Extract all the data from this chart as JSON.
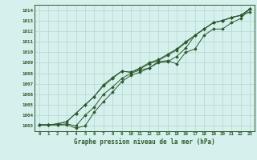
{
  "title": "Graphe pression niveau de la mer (hPa)",
  "background_color": "#d6f0ed",
  "grid_color": "#b0d8d0",
  "line_color": "#2d5a2d",
  "x_ticks": [
    0,
    1,
    2,
    3,
    4,
    5,
    6,
    7,
    8,
    9,
    10,
    11,
    12,
    13,
    14,
    15,
    16,
    17,
    18,
    19,
    20,
    21,
    22,
    23
  ],
  "ylim": [
    1002.5,
    1014.5
  ],
  "xlim": [
    -0.5,
    23.5
  ],
  "yticks": [
    1003,
    1004,
    1005,
    1006,
    1007,
    1008,
    1009,
    1010,
    1011,
    1012,
    1013,
    1014
  ],
  "series": [
    [
      1003.1,
      1003.1,
      1003.1,
      1003.1,
      1002.8,
      1003.0,
      1004.3,
      1005.3,
      1006.2,
      1007.2,
      1007.8,
      1008.1,
      1008.5,
      1009.0,
      1009.1,
      1009.6,
      1010.4,
      1011.6,
      1012.2,
      1012.8,
      1013.0,
      1013.3,
      1013.5,
      1013.8
    ],
    [
      1003.1,
      1003.1,
      1003.1,
      1003.2,
      1003.0,
      1004.0,
      1004.8,
      1006.0,
      1006.7,
      1007.5,
      1008.0,
      1008.3,
      1008.5,
      1009.1,
      1009.2,
      1008.9,
      1010.0,
      1010.3,
      1011.6,
      1012.2,
      1012.2,
      1012.8,
      1013.2,
      1014.1
    ],
    [
      1003.1,
      1003.1,
      1003.2,
      1003.4,
      1004.2,
      1005.0,
      1005.8,
      1006.8,
      1007.5,
      1008.2,
      1008.1,
      1008.4,
      1008.9,
      1009.2,
      1009.7,
      1010.2,
      1010.9,
      1011.6,
      1012.2,
      1012.8,
      1013.0,
      1013.3,
      1013.5,
      1014.1
    ],
    [
      1003.1,
      1003.1,
      1003.2,
      1003.4,
      1004.2,
      1005.0,
      1005.8,
      1006.9,
      1007.6,
      1008.2,
      1008.1,
      1008.5,
      1009.0,
      1009.3,
      1009.8,
      1010.3,
      1011.0,
      1011.6,
      1012.2,
      1012.8,
      1013.0,
      1013.3,
      1013.5,
      1014.1
    ]
  ],
  "figsize": [
    3.2,
    2.0
  ],
  "dpi": 100
}
